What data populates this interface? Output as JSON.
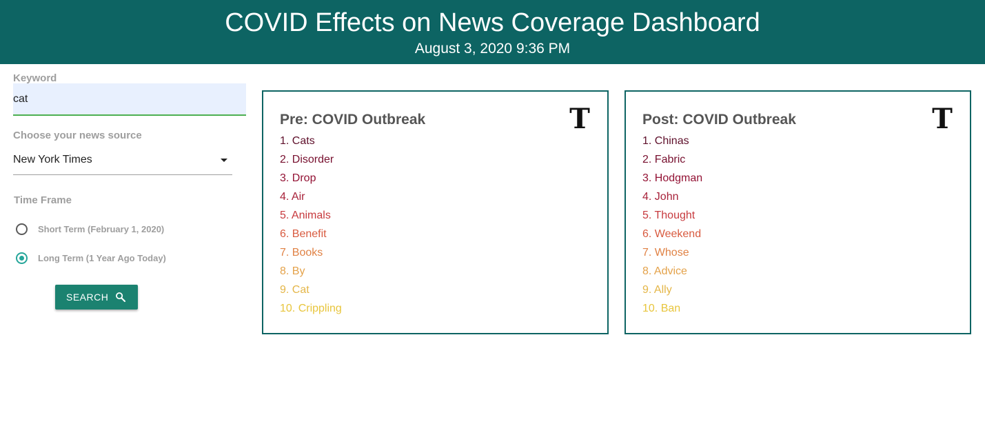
{
  "header": {
    "title": "COVID Effects on News Coverage Dashboard",
    "datetime": "August 3, 2020 9:36 PM"
  },
  "sidebar": {
    "keyword": {
      "label": "Keyword",
      "value": "cat"
    },
    "news_source": {
      "label": "Choose your news source",
      "selected": "New York Times"
    },
    "time_frame": {
      "label": "Time Frame",
      "options": [
        {
          "label": "Short Term (February 1, 2020)",
          "checked": false
        },
        {
          "label": "Long Term (1 Year Ago Today)",
          "checked": true
        }
      ]
    },
    "search_button": {
      "label": "SEARCH",
      "icon": "search-icon"
    }
  },
  "cards": {
    "pre": {
      "title": "Pre: COVID Outbreak",
      "logo_icon": "nyt-logo-icon",
      "items": [
        "1. Cats",
        "2. Disorder",
        "3. Drop",
        "4. Air",
        "5. Animals",
        "6. Benefit",
        "7. Books",
        "8. By",
        "9. Cat",
        "10. Crippling"
      ]
    },
    "post": {
      "title": "Post: COVID Outbreak",
      "logo_icon": "nyt-logo-icon",
      "items": [
        "1. Chinas",
        "2. Fabric",
        "3. Hodgman",
        "4. John",
        "5. Thought",
        "6. Weekend",
        "7. Whose",
        "8. Advice",
        "9. Ally",
        "10. Ban"
      ]
    }
  },
  "colors": {
    "header_bg": "#0d6463",
    "card_border": "#0d6463",
    "button_bg": "#1b8270",
    "radio_accent": "#26a69a",
    "input_underline": "#4caf50",
    "rank_gradient": [
      "#5e0f2a",
      "#770f2e",
      "#931234",
      "#a8223a",
      "#c73a3e",
      "#d85a3f",
      "#e08245",
      "#e4a24a",
      "#e4b648",
      "#e8c53c"
    ]
  }
}
